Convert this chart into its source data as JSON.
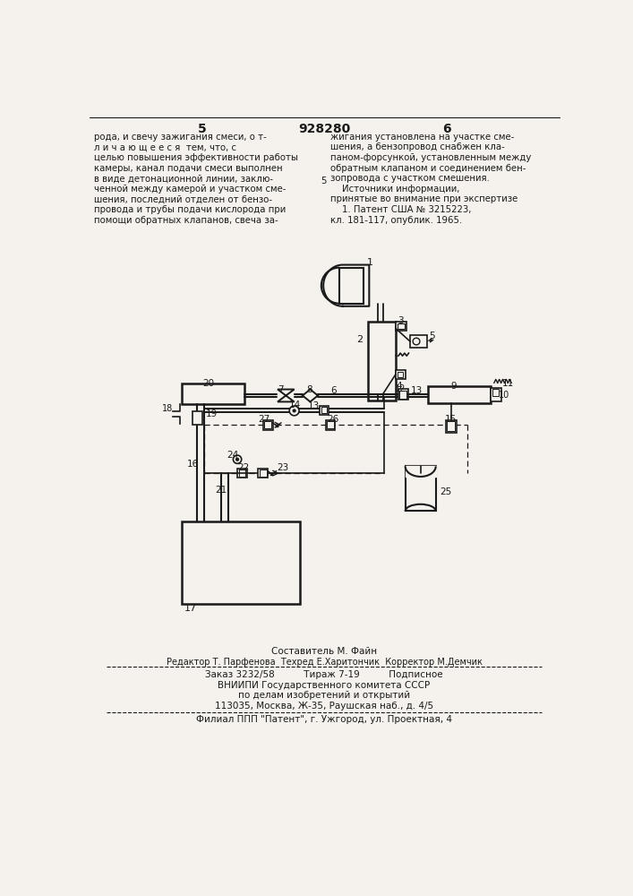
{
  "patent_number": "928280",
  "page_left": "5",
  "page_right": "6",
  "text_left": "рода, и свечу зажигания смеси, о т-\nл и ч а ю щ е е с я  тем, что, с\nцелью повышения эффективности работы\nкамеры, канал подачи смеси выполнен\nв виде детонационной линии, заклю-\nченной между камерой и участком сме-\nшения, последний отделен от бензо-\nпровода и трубы подачи кислорода при\nпомощи обратных клапанов, свеча за-",
  "text_right": "жигания установлена на участке сме-\nшения, а бензопровод снабжен кла-\nпаном-форсункой, установленным между\nобратным клапаном и соединением бен-\nзопровода с участком смешения.\n    Источники информации,\nпринятые во внимание при экспертизе\n    1. Патент США № 3215223,\nкл. 181-117, опублик. 1965.",
  "footer_line1": "Составитель М. Файн",
  "footer_line2": "Редактор Т. Парфенова  Техред Е.Харитончик  Корректор М.Демчик",
  "footer_line3": "Заказ 3232/58          Тираж 7-19          Подписное",
  "footer_line4": "ВНИИПИ Государственного комитета СССР",
  "footer_line5": "по делам изобретений и открытий",
  "footer_line6": "113035, Москва, Ж-35, Раушская наб., д. 4/5",
  "footer_line7": "Филиал ППП \"Патент\", г. Ужгород, ул. Проектная, 4",
  "bg_color": "#f5f2ed",
  "line_color": "#1a1a1a"
}
